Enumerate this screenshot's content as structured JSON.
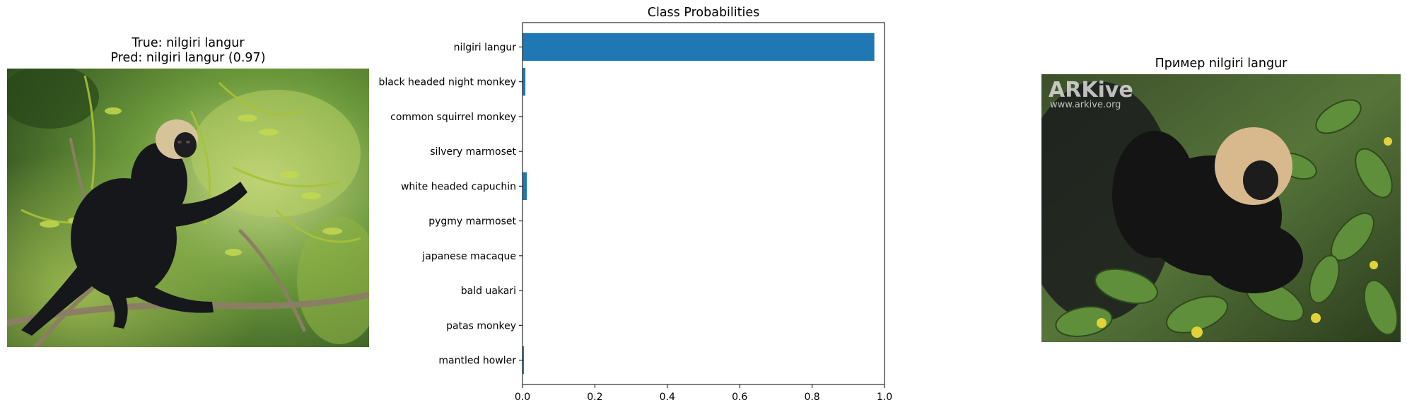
{
  "left_panel": {
    "title_line1": "True: nilgiri langur",
    "title_line2": "Pred: nilgiri langur (0.97)"
  },
  "right_panel": {
    "title": "Пример nilgiri langur",
    "watermark_brand": "ARKive",
    "watermark_url": "www.arkive.org"
  },
  "chart_data": {
    "type": "bar",
    "orientation": "horizontal",
    "title": "Class Probabilities",
    "categories": [
      "nilgiri langur",
      "black headed night monkey",
      "common squirrel monkey",
      "silvery marmoset",
      "white headed capuchin",
      "pygmy marmoset",
      "japanese macaque",
      "bald uakari",
      "patas monkey",
      "mantled howler"
    ],
    "values": [
      0.972,
      0.008,
      0.001,
      0.001,
      0.012,
      0.001,
      0.001,
      0.001,
      0.001,
      0.004
    ],
    "xlim": [
      0,
      1.0
    ],
    "xticks": [
      "0.0",
      "0.2",
      "0.4",
      "0.6",
      "0.8",
      "1.0"
    ],
    "grid": false,
    "bar_color": "#1f77b4"
  }
}
